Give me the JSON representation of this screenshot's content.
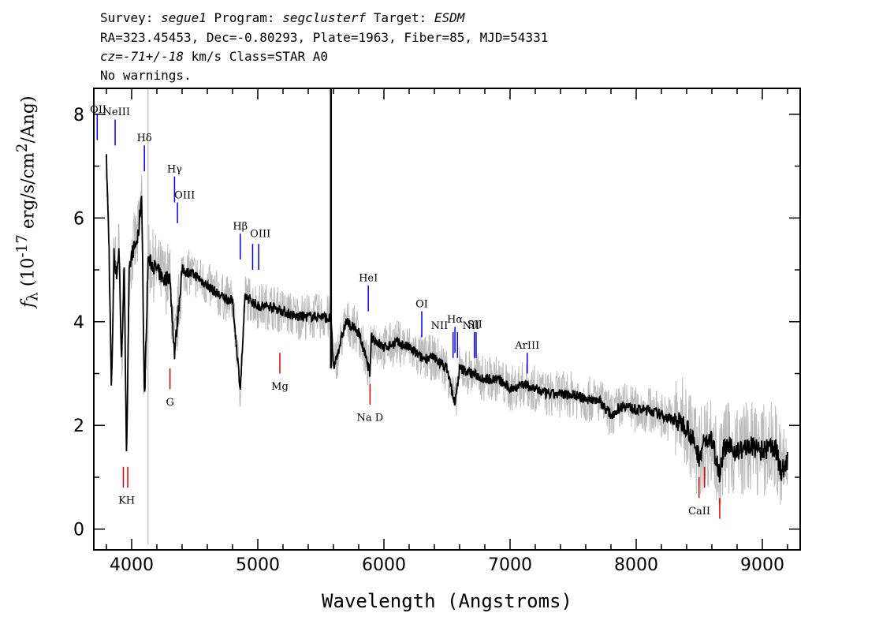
{
  "header": {
    "line1": {
      "survey_label": "Survey: ",
      "survey": "segue1",
      "program_label": " Program: ",
      "program": "segclusterf",
      "target_label": " Target: ",
      "target": "ESDM"
    },
    "line2": "RA=323.45453, Dec=-0.80293, Plate=1963, Fiber=85, MJD=54331",
    "line3": {
      "cz": "cz=-71+/-18",
      "rest": " km/s Class=STAR A0"
    },
    "line4": "No warnings."
  },
  "colors": {
    "spectrum": "#000000",
    "noise": "#bbbbbb",
    "emission": "#0000ee",
    "absorption": "#dd0000"
  },
  "chart_data": {
    "type": "line",
    "xlabel": "Wavelength (Angstroms)",
    "ylabel": "f_λ (10^-17 erg/s/cm^2/Ang)",
    "xlim": [
      3700,
      9300
    ],
    "ylim": [
      -0.4,
      8.5
    ],
    "xticks": [
      4000,
      5000,
      6000,
      7000,
      8000,
      9000
    ],
    "yticks": [
      0,
      2,
      4,
      6,
      8
    ],
    "series": [
      {
        "x": [
          3800,
          3820,
          3840,
          3860,
          3880,
          3900,
          3920,
          3940,
          3960,
          3980,
          4000,
          4050,
          4080,
          4101,
          4130,
          4200,
          4260,
          4300,
          4340,
          4400,
          4500,
          4600,
          4700,
          4800,
          4861,
          4900,
          5000,
          5100,
          5200,
          5300,
          5400,
          5500,
          5580,
          5600,
          5700,
          5800,
          5890,
          5900,
          6000,
          6100,
          6200,
          6300,
          6400,
          6500,
          6563,
          6600,
          6700,
          6800,
          6900,
          7000,
          7100,
          7200,
          7300,
          7400,
          7500,
          7600,
          7700,
          7800,
          7900,
          8000,
          8100,
          8200,
          8300,
          8400,
          8498,
          8542,
          8600,
          8662,
          8700,
          8800,
          8900,
          9000,
          9100,
          9150,
          9200
        ],
        "values": [
          7.1,
          5.5,
          2.6,
          5.3,
          4.9,
          5.4,
          3.2,
          5.1,
          1.4,
          4.9,
          5.3,
          5.6,
          6.5,
          2.4,
          5.2,
          5.0,
          4.8,
          4.9,
          3.4,
          5.0,
          4.9,
          4.7,
          4.5,
          4.4,
          2.7,
          4.5,
          4.3,
          4.3,
          4.2,
          4.1,
          4.1,
          4.1,
          4.05,
          3.1,
          4.0,
          3.8,
          3.0,
          3.7,
          3.5,
          3.6,
          3.5,
          3.3,
          3.3,
          3.1,
          2.4,
          3.1,
          3.0,
          2.9,
          2.9,
          2.7,
          2.8,
          2.7,
          2.6,
          2.6,
          2.6,
          2.5,
          2.5,
          2.2,
          2.4,
          2.3,
          2.3,
          2.2,
          2.1,
          2.0,
          1.4,
          1.7,
          1.7,
          1.1,
          1.6,
          1.5,
          1.6,
          1.5,
          1.6,
          1.1,
          1.3
        ]
      }
    ],
    "lines": [
      {
        "label": "OII",
        "wl": 3727,
        "kind": "emission",
        "y": [
          7.5,
          8.0
        ]
      },
      {
        "label": "NeIII",
        "wl": 3869,
        "kind": "emission",
        "y": [
          7.4,
          7.9
        ]
      },
      {
        "label": "Hδ",
        "wl": 4101,
        "kind": "emission",
        "y": [
          6.9,
          7.4
        ]
      },
      {
        "label": "Hγ",
        "wl": 4340,
        "kind": "emission",
        "y": [
          6.3,
          6.8
        ]
      },
      {
        "label": "OIII",
        "wl": 4363,
        "kind": "emission",
        "y": [
          5.9,
          6.3
        ]
      },
      {
        "label": "Hβ",
        "wl": 4861,
        "kind": "emission",
        "y": [
          5.2,
          5.7
        ]
      },
      {
        "label": "OIII",
        "wl": 4959,
        "kind": "emission",
        "y": [
          5.0,
          5.5
        ]
      },
      {
        "label": "OIII",
        "wl": 5007,
        "kind": "emission",
        "y": [
          5.0,
          5.5
        ]
      },
      {
        "label": "HeI",
        "wl": 5876,
        "kind": "emission",
        "y": [
          4.2,
          4.7
        ]
      },
      {
        "label": "OI",
        "wl": 6300,
        "kind": "emission",
        "y": [
          3.7,
          4.2
        ]
      },
      {
        "label": "NII",
        "wl": 6548,
        "kind": "emission",
        "y": [
          3.3,
          3.8
        ]
      },
      {
        "label": "Hα",
        "wl": 6563,
        "kind": "emission",
        "y": [
          3.4,
          3.9
        ]
      },
      {
        "label": "NII",
        "wl": 6583,
        "kind": "emission",
        "y": [
          3.3,
          3.8
        ]
      },
      {
        "label": "SII",
        "wl": 6717,
        "kind": "emission",
        "y": [
          3.3,
          3.8
        ]
      },
      {
        "label": "SII",
        "wl": 6731,
        "kind": "emission",
        "y": [
          3.3,
          3.8
        ]
      },
      {
        "label": "ArIII",
        "wl": 7136,
        "kind": "emission",
        "y": [
          3.0,
          3.4
        ]
      },
      {
        "label": "K",
        "wl": 3934,
        "kind": "absorption",
        "y": [
          0.8,
          1.2
        ]
      },
      {
        "label": "H",
        "wl": 3969,
        "kind": "absorption",
        "y": [
          0.8,
          1.2
        ]
      },
      {
        "label": "G",
        "wl": 4304,
        "kind": "absorption",
        "y": [
          2.7,
          3.1
        ]
      },
      {
        "label": "Mg",
        "wl": 5175,
        "kind": "absorption",
        "y": [
          3.0,
          3.4
        ]
      },
      {
        "label": "Na D",
        "wl": 5890,
        "kind": "absorption",
        "y": [
          2.4,
          2.8
        ]
      },
      {
        "label": "CaII",
        "wl": 8498,
        "kind": "absorption",
        "y": [
          0.6,
          1.0
        ]
      },
      {
        "label": "CaII",
        "wl": 8542,
        "kind": "absorption",
        "y": [
          0.8,
          1.2
        ]
      },
      {
        "label": "CaII",
        "wl": 8662,
        "kind": "absorption",
        "y": [
          0.2,
          0.6
        ]
      }
    ]
  }
}
